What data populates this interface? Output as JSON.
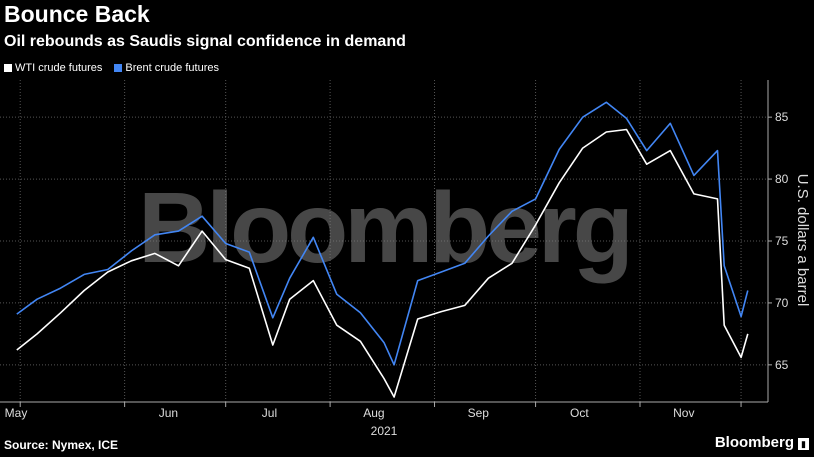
{
  "chart_data": {
    "type": "line",
    "title": "Bounce Back",
    "subtitle": "Oil rebounds as Saudis signal confidence in demand",
    "ylabel": "U.S. dollars a barrel",
    "xlabel": "2021",
    "ylim": [
      62,
      88
    ],
    "yticks": [
      65,
      70,
      75,
      80,
      85
    ],
    "months": [
      "May",
      "Jun",
      "Jul",
      "Aug",
      "Sep",
      "Oct",
      "Nov"
    ],
    "x": [
      "2021-04-30",
      "2021-05-06",
      "2021-05-13",
      "2021-05-20",
      "2021-05-27",
      "2021-06-03",
      "2021-06-10",
      "2021-06-17",
      "2021-06-24",
      "2021-07-01",
      "2021-07-08",
      "2021-07-15",
      "2021-07-20",
      "2021-07-27",
      "2021-08-03",
      "2021-08-10",
      "2021-08-17",
      "2021-08-20",
      "2021-08-27",
      "2021-09-03",
      "2021-09-10",
      "2021-09-17",
      "2021-09-24",
      "2021-10-01",
      "2021-10-08",
      "2021-10-15",
      "2021-10-22",
      "2021-10-28",
      "2021-11-03",
      "2021-11-10",
      "2021-11-17",
      "2021-11-24",
      "2021-11-26",
      "2021-12-01",
      "2021-12-03"
    ],
    "series": [
      {
        "name": "WTI crude futures",
        "color": "#ffffff",
        "values": [
          66.2,
          67.5,
          69.2,
          71.0,
          72.5,
          73.4,
          74.0,
          73.0,
          75.8,
          73.5,
          72.8,
          66.6,
          70.3,
          71.8,
          68.2,
          66.9,
          63.9,
          62.4,
          68.7,
          69.3,
          69.8,
          72.0,
          73.2,
          76.3,
          79.7,
          82.5,
          83.8,
          84.0,
          81.2,
          82.3,
          78.8,
          78.4,
          68.2,
          65.6,
          67.5
        ]
      },
      {
        "name": "Brent crude futures",
        "color": "#4286f4",
        "values": [
          69.1,
          70.3,
          71.2,
          72.3,
          72.7,
          74.2,
          75.5,
          75.8,
          77.0,
          74.8,
          74.1,
          68.8,
          72.0,
          75.3,
          70.7,
          69.2,
          66.8,
          65.0,
          71.8,
          72.5,
          73.2,
          75.4,
          77.4,
          78.4,
          82.4,
          85.0,
          86.2,
          84.9,
          82.3,
          84.5,
          80.3,
          82.3,
          73.0,
          68.9,
          71.0
        ]
      }
    ]
  },
  "source": "Source: Nymex, ICE",
  "brand": "Bloomberg",
  "watermark": "Bloomberg"
}
